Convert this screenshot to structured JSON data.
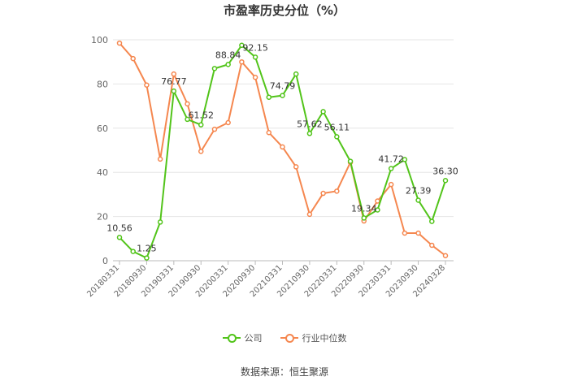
{
  "title": "市盈率历史分位（%）",
  "source": "数据来源：恒生聚源",
  "chart_data": {
    "type": "line",
    "title": "市盈率历史分位（%）",
    "x": [
      "20180331",
      "20180630",
      "20180930",
      "20181231",
      "20190331",
      "20190630",
      "20190930",
      "20191231",
      "20200331",
      "20200630",
      "20200930",
      "20201231",
      "20210331",
      "20210630",
      "20210930",
      "20211231",
      "20220331",
      "20220630",
      "20220930",
      "20221231",
      "20230331",
      "20230630",
      "20230930",
      "20231231",
      "20240328"
    ],
    "x_tick_labels": [
      "20180331",
      "20180930",
      "20190331",
      "20190930",
      "20200331",
      "20200930",
      "20210331",
      "20210930",
      "20220331",
      "20220930",
      "20230331",
      "20230930",
      "20240328"
    ],
    "ylim": [
      0,
      100
    ],
    "y_ticks": [
      0,
      20,
      40,
      60,
      80,
      100
    ],
    "grid": true,
    "legend_position": "bottom",
    "series": [
      {
        "name": "公司",
        "color": "#52c41a",
        "values": [
          10.56,
          4.2,
          1.25,
          17.5,
          76.77,
          64.0,
          61.52,
          87.0,
          88.84,
          97.5,
          92.15,
          74.0,
          74.79,
          84.5,
          57.62,
          67.5,
          56.11,
          45.0,
          19.34,
          23.0,
          41.72,
          45.8,
          27.39,
          17.8,
          36.3
        ],
        "labels": {
          "0": "10.56",
          "2": "1.25",
          "4": "76.77",
          "6": "61.52",
          "8": "88.84",
          "10": "92.15",
          "12": "74.79",
          "14": "57.62",
          "16": "56.11",
          "18": "19.34",
          "20": "41.72",
          "22": "27.39",
          "24": "36.30"
        }
      },
      {
        "name": "行业中位数",
        "color": "#f5874f",
        "values": [
          98.5,
          91.5,
          79.5,
          46.0,
          84.5,
          71.0,
          49.5,
          59.5,
          62.5,
          90.0,
          83.0,
          58.0,
          51.5,
          42.5,
          21.0,
          30.5,
          31.5,
          44.5,
          18.0,
          27.0,
          34.5,
          12.5,
          12.5,
          7.0,
          2.3
        ]
      }
    ]
  }
}
